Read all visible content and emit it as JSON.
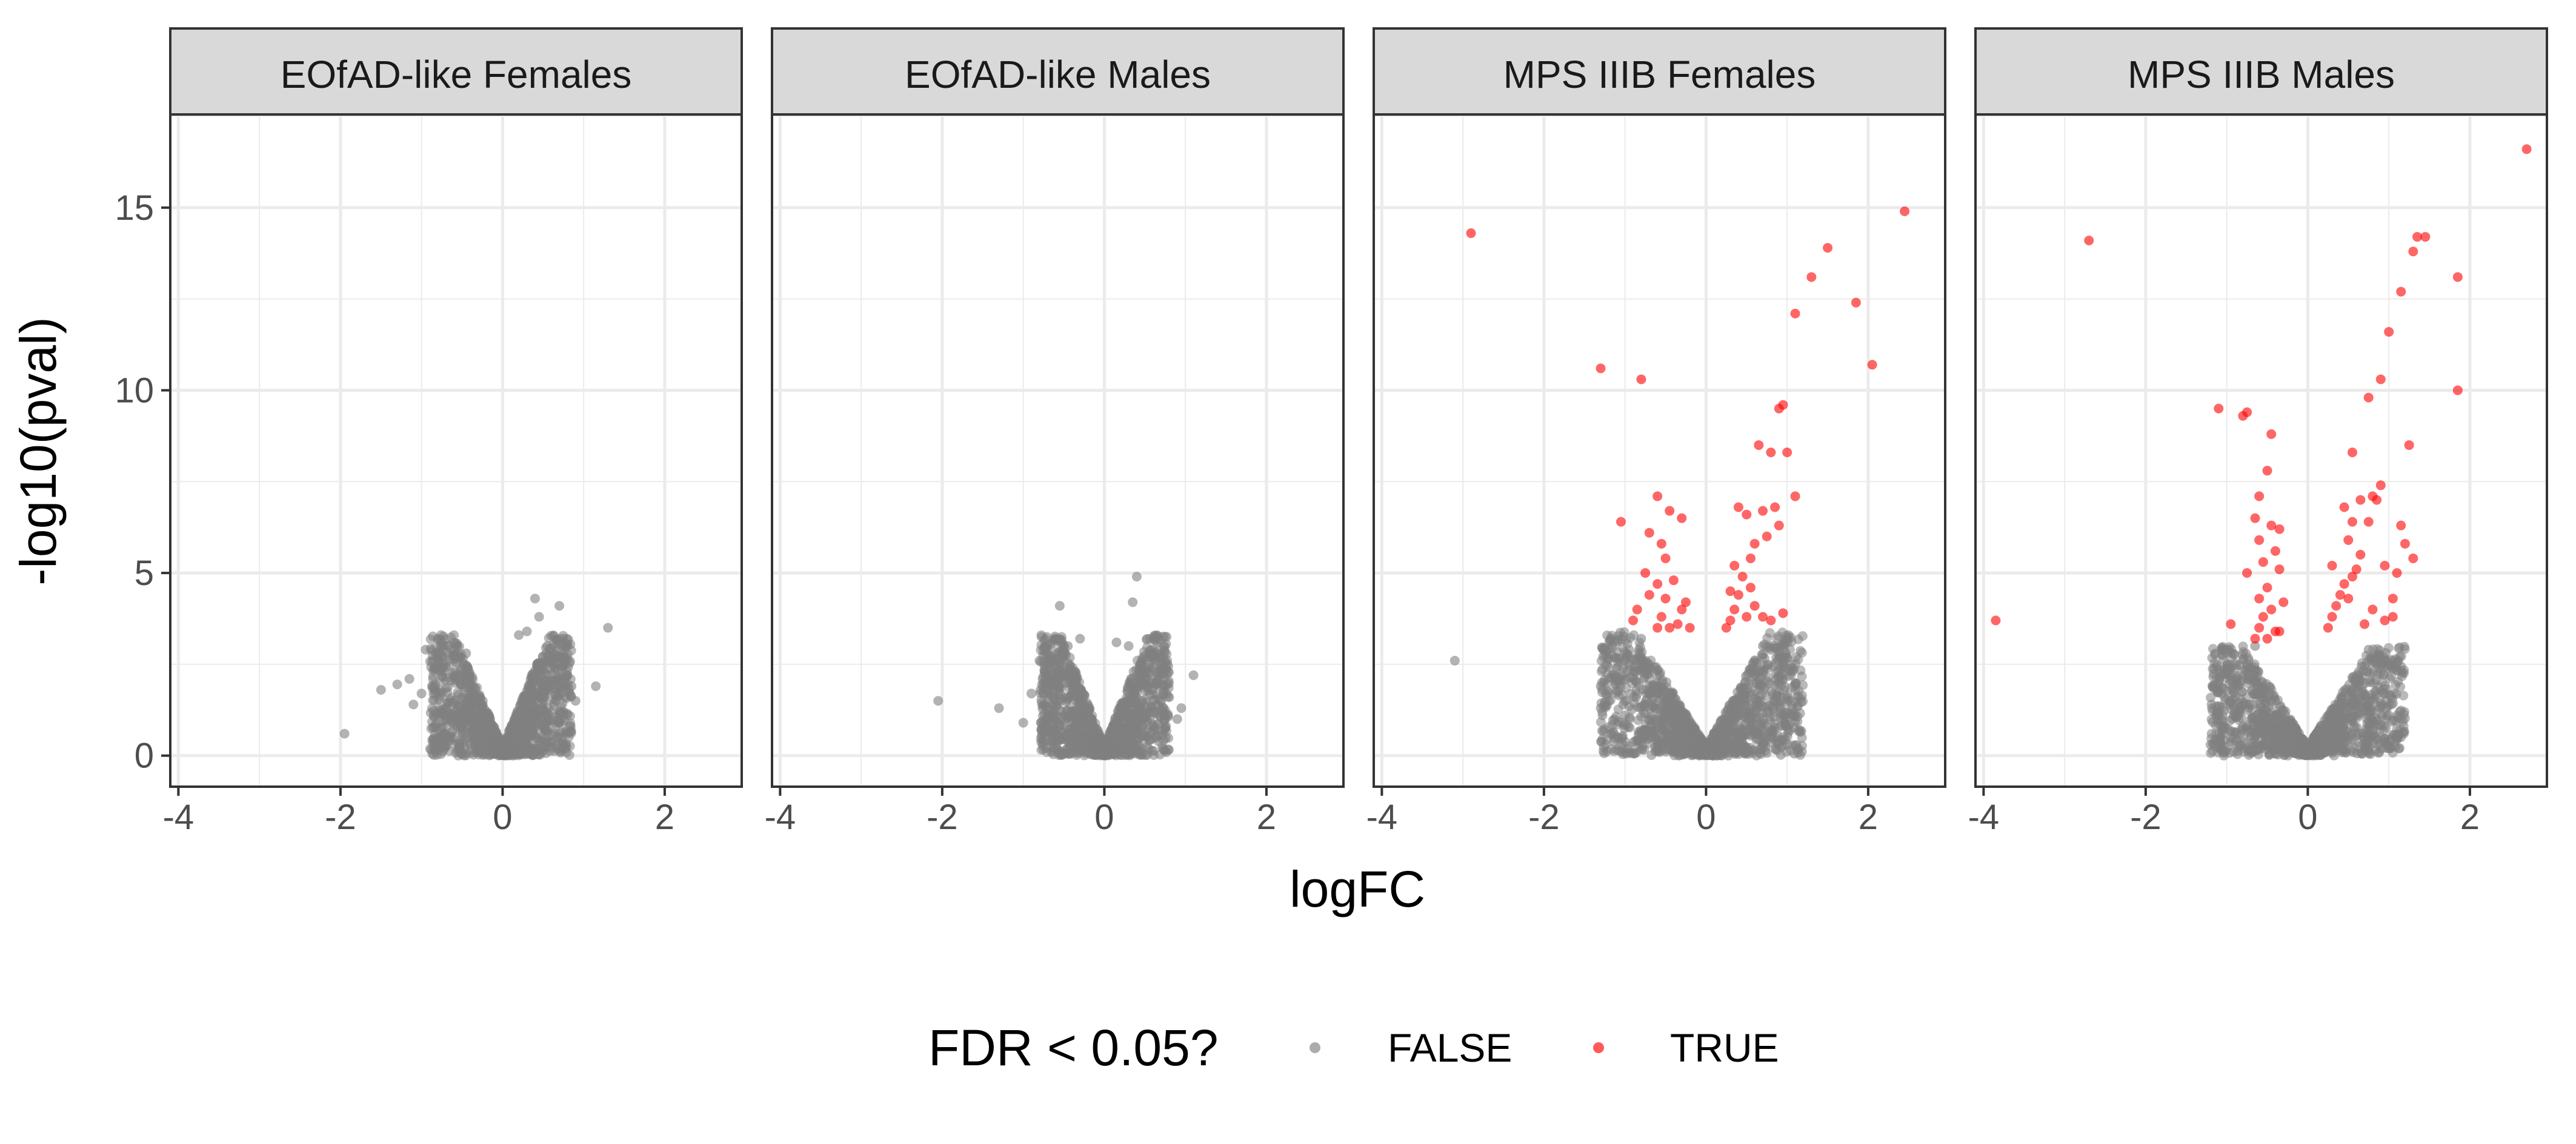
{
  "chart_data": {
    "type": "scatter",
    "subtype": "faceted volcano plot",
    "xlabel": "logFC",
    "ylabel": "-log10(pval)",
    "xlim": [
      -4.1,
      2.95
    ],
    "ylim": [
      -0.85,
      17.55
    ],
    "x_ticks": [
      -4,
      -2,
      0,
      2
    ],
    "x_tick_labels": [
      "-4",
      "-2",
      "0",
      "2"
    ],
    "y_ticks": [
      0,
      5,
      10,
      15
    ],
    "y_tick_labels": [
      "0",
      "5",
      "10",
      "15"
    ],
    "grid": true,
    "legend": {
      "position": "bottom",
      "title": "FDR < 0.05?",
      "entries": [
        {
          "label": "FALSE",
          "color": "#808080"
        },
        {
          "label": "TRUE",
          "color": "#ff0000"
        }
      ]
    },
    "panels": [
      {
        "title": "EOfAD-like Females",
        "bulk_ranges": [
          [
            -0.9,
            0.85,
            3.3
          ]
        ],
        "points_false": [
          [
            -1.95,
            0.6
          ],
          [
            -1.5,
            1.8
          ],
          [
            -1.3,
            1.95
          ],
          [
            -1.15,
            2.1
          ],
          [
            -1.0,
            1.7
          ],
          [
            -0.95,
            2.9
          ],
          [
            -0.8,
            3.2
          ],
          [
            -0.75,
            2.7
          ],
          [
            -0.6,
            3.1
          ],
          [
            -0.45,
            2.8
          ],
          [
            0.2,
            3.3
          ],
          [
            0.3,
            3.4
          ],
          [
            0.4,
            4.3
          ],
          [
            0.45,
            3.8
          ],
          [
            0.7,
            4.1
          ],
          [
            0.55,
            3.0
          ],
          [
            0.75,
            2.5
          ],
          [
            0.8,
            2.2
          ],
          [
            0.85,
            1.9
          ],
          [
            0.9,
            1.5
          ],
          [
            1.15,
            1.9
          ],
          [
            1.3,
            3.5
          ],
          [
            0.65,
            2.4
          ],
          [
            -1.1,
            1.4
          ],
          [
            -0.85,
            1.1
          ],
          [
            0.6,
            1.2
          ]
        ],
        "points_true": []
      },
      {
        "title": "EOfAD-like Males",
        "bulk_ranges": [
          [
            -0.8,
            0.8,
            3.3
          ]
        ],
        "points_false": [
          [
            -2.05,
            1.5
          ],
          [
            -1.3,
            1.3
          ],
          [
            -1.0,
            0.9
          ],
          [
            -0.8,
            2.6
          ],
          [
            -0.75,
            2.0
          ],
          [
            -0.55,
            4.1
          ],
          [
            -0.45,
            3.0
          ],
          [
            -0.3,
            3.2
          ],
          [
            0.15,
            3.1
          ],
          [
            0.3,
            3.0
          ],
          [
            0.4,
            4.9
          ],
          [
            0.35,
            4.2
          ],
          [
            0.55,
            2.8
          ],
          [
            0.65,
            2.2
          ],
          [
            0.8,
            1.6
          ],
          [
            0.9,
            1.0
          ],
          [
            0.95,
            1.3
          ],
          [
            1.1,
            2.2
          ],
          [
            0.7,
            1.9
          ],
          [
            -0.65,
            1.4
          ],
          [
            -0.9,
            1.7
          ],
          [
            0.45,
            2.5
          ]
        ],
        "points_true": []
      },
      {
        "title": "MPS IIIB Females",
        "bulk_ranges": [
          [
            -1.3,
            1.2,
            3.4
          ]
        ],
        "points_false": [
          [
            -3.1,
            2.6
          ],
          [
            -1.3,
            1.9
          ],
          [
            -1.3,
            1.3
          ],
          [
            -1.2,
            1.5
          ],
          [
            -1.1,
            2.4
          ],
          [
            -0.95,
            2.9
          ],
          [
            1.0,
            2.4
          ],
          [
            0.9,
            2.0
          ],
          [
            0.85,
            1.5
          ],
          [
            1.1,
            1.8
          ],
          [
            -0.8,
            3.2
          ],
          [
            0.7,
            3.0
          ],
          [
            -1.0,
            1.1
          ],
          [
            0.95,
            1.1
          ]
        ],
        "points_true": [
          [
            -2.9,
            14.3
          ],
          [
            -1.3,
            10.6
          ],
          [
            -0.8,
            10.3
          ],
          [
            -1.05,
            6.4
          ],
          [
            -0.6,
            7.1
          ],
          [
            -0.45,
            6.7
          ],
          [
            -0.3,
            6.5
          ],
          [
            -0.7,
            6.1
          ],
          [
            -0.55,
            5.8
          ],
          [
            -0.5,
            5.4
          ],
          [
            -0.75,
            5.0
          ],
          [
            -0.6,
            4.7
          ],
          [
            -0.4,
            4.8
          ],
          [
            -0.5,
            4.3
          ],
          [
            -0.85,
            4.0
          ],
          [
            -0.7,
            4.4
          ],
          [
            -0.3,
            4.0
          ],
          [
            -0.55,
            3.8
          ],
          [
            -0.45,
            3.5
          ],
          [
            -0.35,
            3.6
          ],
          [
            -0.2,
            3.5
          ],
          [
            -0.6,
            3.5
          ],
          [
            -0.9,
            3.7
          ],
          [
            0.25,
            3.5
          ],
          [
            0.3,
            3.7
          ],
          [
            0.35,
            4.0
          ],
          [
            0.4,
            4.4
          ],
          [
            0.45,
            4.9
          ],
          [
            0.55,
            5.4
          ],
          [
            0.35,
            5.2
          ],
          [
            0.6,
            5.8
          ],
          [
            0.75,
            6.0
          ],
          [
            0.9,
            6.3
          ],
          [
            0.4,
            6.8
          ],
          [
            0.5,
            6.6
          ],
          [
            0.7,
            6.7
          ],
          [
            0.85,
            6.8
          ],
          [
            1.1,
            7.1
          ],
          [
            0.65,
            8.5
          ],
          [
            0.8,
            8.3
          ],
          [
            1.0,
            8.3
          ],
          [
            0.9,
            9.5
          ],
          [
            0.95,
            9.6
          ],
          [
            1.1,
            12.1
          ],
          [
            1.3,
            13.1
          ],
          [
            1.5,
            13.9
          ],
          [
            1.85,
            12.4
          ],
          [
            2.05,
            10.7
          ],
          [
            2.45,
            14.9
          ],
          [
            0.5,
            3.8
          ],
          [
            0.6,
            4.1
          ],
          [
            0.8,
            3.7
          ],
          [
            0.95,
            3.9
          ],
          [
            0.3,
            4.5
          ],
          [
            0.55,
            4.6
          ],
          [
            0.7,
            3.8
          ],
          [
            -0.25,
            4.2
          ]
        ]
      },
      {
        "title": "MPS IIIB Males",
        "bulk_ranges": [
          [
            -1.2,
            1.2,
            3.0
          ]
        ],
        "points_false": [
          [
            -1.05,
            1.1
          ],
          [
            -0.9,
            1.2
          ],
          [
            -1.2,
            0.3
          ],
          [
            -1.1,
            2.0
          ],
          [
            -0.75,
            2.5
          ],
          [
            -0.65,
            3.0
          ],
          [
            0.95,
            1.7
          ],
          [
            1.0,
            1.4
          ],
          [
            0.85,
            2.5
          ],
          [
            1.1,
            1.1
          ],
          [
            -0.95,
            0.5
          ],
          [
            0.75,
            2.9
          ]
        ],
        "points_true": [
          [
            -3.85,
            3.7
          ],
          [
            -2.7,
            14.1
          ],
          [
            -1.1,
            9.5
          ],
          [
            -0.8,
            9.3
          ],
          [
            -0.75,
            9.4
          ],
          [
            -0.45,
            8.8
          ],
          [
            -0.5,
            7.8
          ],
          [
            -0.6,
            7.1
          ],
          [
            -0.65,
            6.5
          ],
          [
            -0.45,
            6.3
          ],
          [
            -0.35,
            6.2
          ],
          [
            -0.6,
            5.9
          ],
          [
            -0.4,
            5.6
          ],
          [
            -0.55,
            5.3
          ],
          [
            -0.75,
            5.0
          ],
          [
            -0.35,
            5.1
          ],
          [
            -0.5,
            4.6
          ],
          [
            -0.6,
            4.3
          ],
          [
            -0.45,
            4.0
          ],
          [
            -0.3,
            4.2
          ],
          [
            -0.55,
            3.8
          ],
          [
            -0.6,
            3.5
          ],
          [
            -0.4,
            3.4
          ],
          [
            -0.5,
            3.2
          ],
          [
            -0.35,
            3.4
          ],
          [
            -0.95,
            3.6
          ],
          [
            -0.65,
            3.2
          ],
          [
            0.25,
            3.5
          ],
          [
            0.3,
            3.8
          ],
          [
            0.35,
            4.1
          ],
          [
            0.4,
            4.4
          ],
          [
            0.45,
            4.7
          ],
          [
            0.5,
            4.3
          ],
          [
            0.55,
            4.9
          ],
          [
            0.3,
            5.2
          ],
          [
            0.6,
            5.1
          ],
          [
            0.65,
            5.5
          ],
          [
            0.5,
            5.9
          ],
          [
            0.55,
            6.4
          ],
          [
            0.45,
            6.8
          ],
          [
            0.65,
            7.0
          ],
          [
            0.8,
            7.1
          ],
          [
            0.85,
            7.0
          ],
          [
            0.9,
            7.4
          ],
          [
            0.75,
            6.4
          ],
          [
            0.95,
            5.2
          ],
          [
            1.1,
            5.0
          ],
          [
            1.15,
            6.3
          ],
          [
            1.2,
            5.8
          ],
          [
            1.3,
            5.4
          ],
          [
            1.05,
            3.8
          ],
          [
            0.95,
            3.7
          ],
          [
            1.05,
            4.3
          ],
          [
            0.8,
            4.0
          ],
          [
            0.7,
            3.6
          ],
          [
            0.55,
            8.3
          ],
          [
            0.75,
            9.8
          ],
          [
            0.9,
            10.3
          ],
          [
            1.0,
            11.6
          ],
          [
            1.15,
            12.7
          ],
          [
            1.3,
            13.8
          ],
          [
            1.25,
            8.5
          ],
          [
            1.35,
            14.2
          ],
          [
            1.45,
            14.2
          ],
          [
            1.85,
            10.0
          ],
          [
            1.85,
            13.1
          ],
          [
            2.7,
            16.6
          ]
        ]
      }
    ]
  }
}
